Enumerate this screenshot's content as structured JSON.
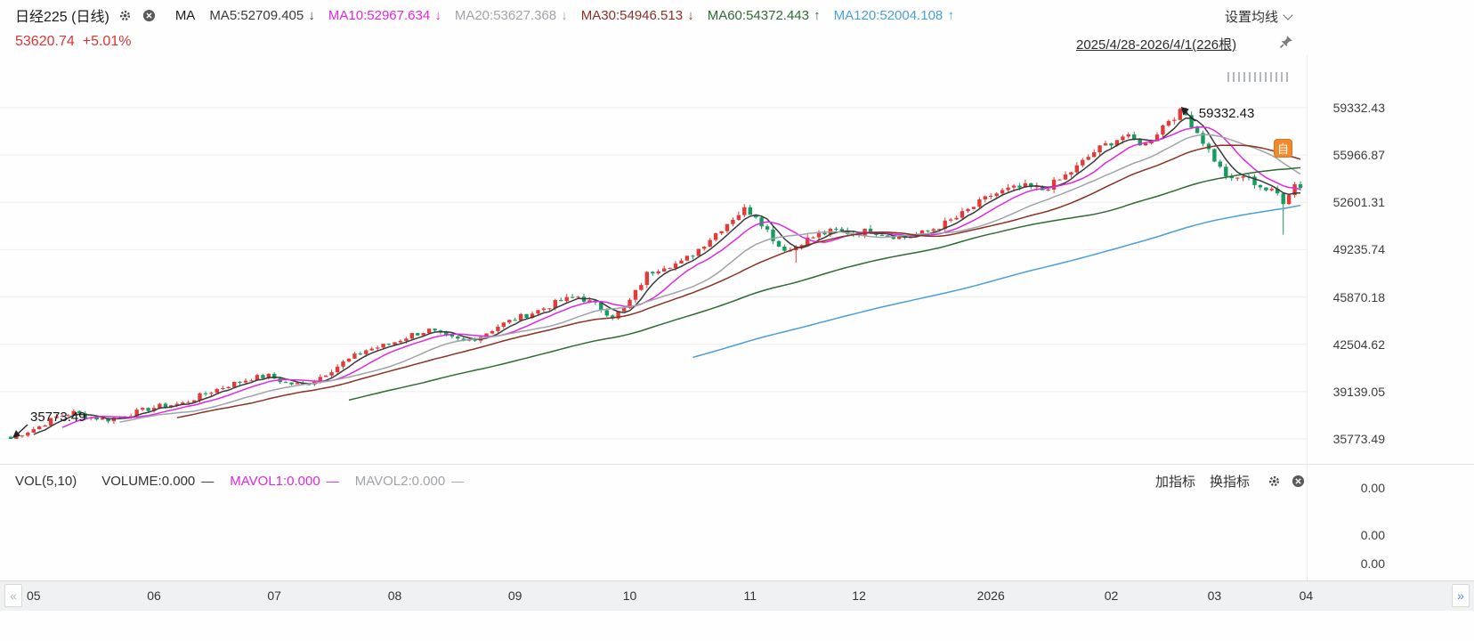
{
  "header": {
    "title": "日经225 (日线)",
    "ma_group_label": "MA",
    "ma_items": [
      {
        "label": "MA5:52709.405",
        "arrow": "↓",
        "color": "#3a3a3a"
      },
      {
        "label": "MA10:52967.634",
        "arrow": "↓",
        "color": "#e028e0"
      },
      {
        "label": "MA20:53627.368",
        "arrow": "↓",
        "color": "#a0a4a8"
      },
      {
        "label": "MA30:54946.513",
        "arrow": "↓",
        "color": "#8b3123"
      },
      {
        "label": "MA60:54372.443",
        "arrow": "↑",
        "color": "#2e6b30"
      },
      {
        "label": "MA120:52004.108",
        "arrow": "↑",
        "color": "#4a9fd8"
      }
    ],
    "ma_settings_label": "设置均线",
    "price": "53620.74",
    "change": "+5.01%",
    "date_range": "2025/4/28-2026/4/1(226根)"
  },
  "badges": {
    "auto_badge": "自"
  },
  "chart_data": {
    "type": "candlestick",
    "symbol": "日经225",
    "period": "日线",
    "bars": 226,
    "date_range": "2025/4/28-2026/4/1",
    "last_close": 53620.74,
    "change_pct": "+5.01%",
    "high_max": 59332.43,
    "low_min": 35773.49,
    "y_axis_ticks": [
      "59332.43",
      "55966.87",
      "52601.31",
      "49235.74",
      "45870.18",
      "42504.62",
      "39139.05",
      "35773.49"
    ],
    "annotations": {
      "max": "59332.43",
      "min": "35773.49"
    },
    "up_color": "#e13c39",
    "down_color": "#169d5d",
    "grid_color": "#ededed",
    "seed": 7,
    "ma_lines": [
      {
        "name": "MA5",
        "period": 5,
        "value": 52709.405,
        "color": "#3a3a3a"
      },
      {
        "name": "MA10",
        "period": 10,
        "value": 52967.634,
        "color": "#e028e0"
      },
      {
        "name": "MA20",
        "period": 20,
        "value": 53627.368,
        "color": "#a0a4a8"
      },
      {
        "name": "MA30",
        "period": 30,
        "value": 54946.513,
        "color": "#8b3123"
      },
      {
        "name": "MA60",
        "period": 60,
        "value": 54372.443,
        "color": "#2e6b30"
      },
      {
        "name": "MA120",
        "period": 120,
        "value": 52004.108,
        "color": "#4a9fd8"
      }
    ],
    "close_anchors": [
      [
        0,
        35773
      ],
      [
        2,
        36150
      ],
      [
        5,
        36650
      ],
      [
        8,
        37350
      ],
      [
        11,
        37650
      ],
      [
        14,
        37300
      ],
      [
        17,
        37150
      ],
      [
        20,
        37450
      ],
      [
        23,
        37800
      ],
      [
        26,
        38100
      ],
      [
        30,
        38300
      ],
      [
        34,
        39000
      ],
      [
        38,
        39600
      ],
      [
        42,
        40100
      ],
      [
        45,
        40250
      ],
      [
        48,
        39750
      ],
      [
        51,
        39600
      ],
      [
        54,
        40200
      ],
      [
        58,
        41200
      ],
      [
        62,
        42100
      ],
      [
        66,
        42500
      ],
      [
        70,
        43200
      ],
      [
        73,
        43500
      ],
      [
        76,
        43000
      ],
      [
        79,
        42700
      ],
      [
        82,
        43100
      ],
      [
        85,
        43800
      ],
      [
        88,
        44300
      ],
      [
        92,
        44900
      ],
      [
        96,
        45600
      ],
      [
        99,
        45900
      ],
      [
        102,
        45300
      ],
      [
        105,
        44500
      ],
      [
        107,
        45000
      ],
      [
        109,
        46200
      ],
      [
        111,
        47500
      ],
      [
        114,
        48100
      ],
      [
        117,
        48300
      ],
      [
        120,
        49300
      ],
      [
        123,
        50400
      ],
      [
        126,
        51500
      ],
      [
        128,
        52100
      ],
      [
        130,
        51700
      ],
      [
        132,
        50600
      ],
      [
        134,
        49500
      ],
      [
        136,
        49200
      ],
      [
        138,
        49800
      ],
      [
        141,
        50300
      ],
      [
        144,
        50600
      ],
      [
        147,
        50400
      ],
      [
        150,
        50600
      ],
      [
        153,
        50300
      ],
      [
        156,
        50100
      ],
      [
        159,
        50400
      ],
      [
        162,
        50900
      ],
      [
        165,
        51500
      ],
      [
        168,
        52300
      ],
      [
        171,
        53100
      ],
      [
        174,
        53500
      ],
      [
        177,
        53700
      ],
      [
        180,
        53500
      ],
      [
        183,
        54200
      ],
      [
        186,
        55100
      ],
      [
        189,
        56200
      ],
      [
        192,
        56900
      ],
      [
        194,
        57300
      ],
      [
        196,
        57000
      ],
      [
        198,
        56700
      ],
      [
        200,
        57600
      ],
      [
        202,
        58500
      ],
      [
        204,
        59000
      ],
      [
        205,
        58800
      ],
      [
        207,
        57600
      ],
      [
        209,
        56300
      ],
      [
        211,
        55000
      ],
      [
        213,
        54100
      ],
      [
        215,
        54500
      ],
      [
        217,
        54000
      ],
      [
        219,
        53500
      ],
      [
        221,
        53200
      ],
      [
        222,
        52700
      ],
      [
        223,
        53300
      ],
      [
        224,
        53900
      ],
      [
        225,
        53620.74
      ]
    ],
    "forced_lows": [
      [
        137,
        48300
      ],
      [
        222,
        50300
      ]
    ]
  },
  "volume_panel": {
    "indicator_label": "VOL(5,10)",
    "items": [
      {
        "label": "VOLUME:0.000",
        "color": "#333333"
      },
      {
        "label": "MAVOL1:0.000",
        "color": "#e028e0"
      },
      {
        "label": "MAVOL2:0.000",
        "color": "#a0a4a8"
      }
    ],
    "add_indicator": "加指标",
    "switch_indicator": "换指标",
    "axis_labels": [
      "0.00",
      "0.00",
      "0.00"
    ]
  },
  "x_axis": {
    "ticks": [
      {
        "t": "05",
        "i": 4
      },
      {
        "t": "06",
        "i": 25
      },
      {
        "t": "07",
        "i": 46
      },
      {
        "t": "08",
        "i": 67
      },
      {
        "t": "09",
        "i": 88
      },
      {
        "t": "10",
        "i": 108
      },
      {
        "t": "11",
        "i": 129
      },
      {
        "t": "12",
        "i": 148
      },
      {
        "t": "2026",
        "i": 171
      },
      {
        "t": "02",
        "i": 192
      },
      {
        "t": "03",
        "i": 210
      },
      {
        "t": "04",
        "i": 226
      }
    ]
  },
  "nav": {
    "prev_label": "«",
    "next_label": "»"
  }
}
